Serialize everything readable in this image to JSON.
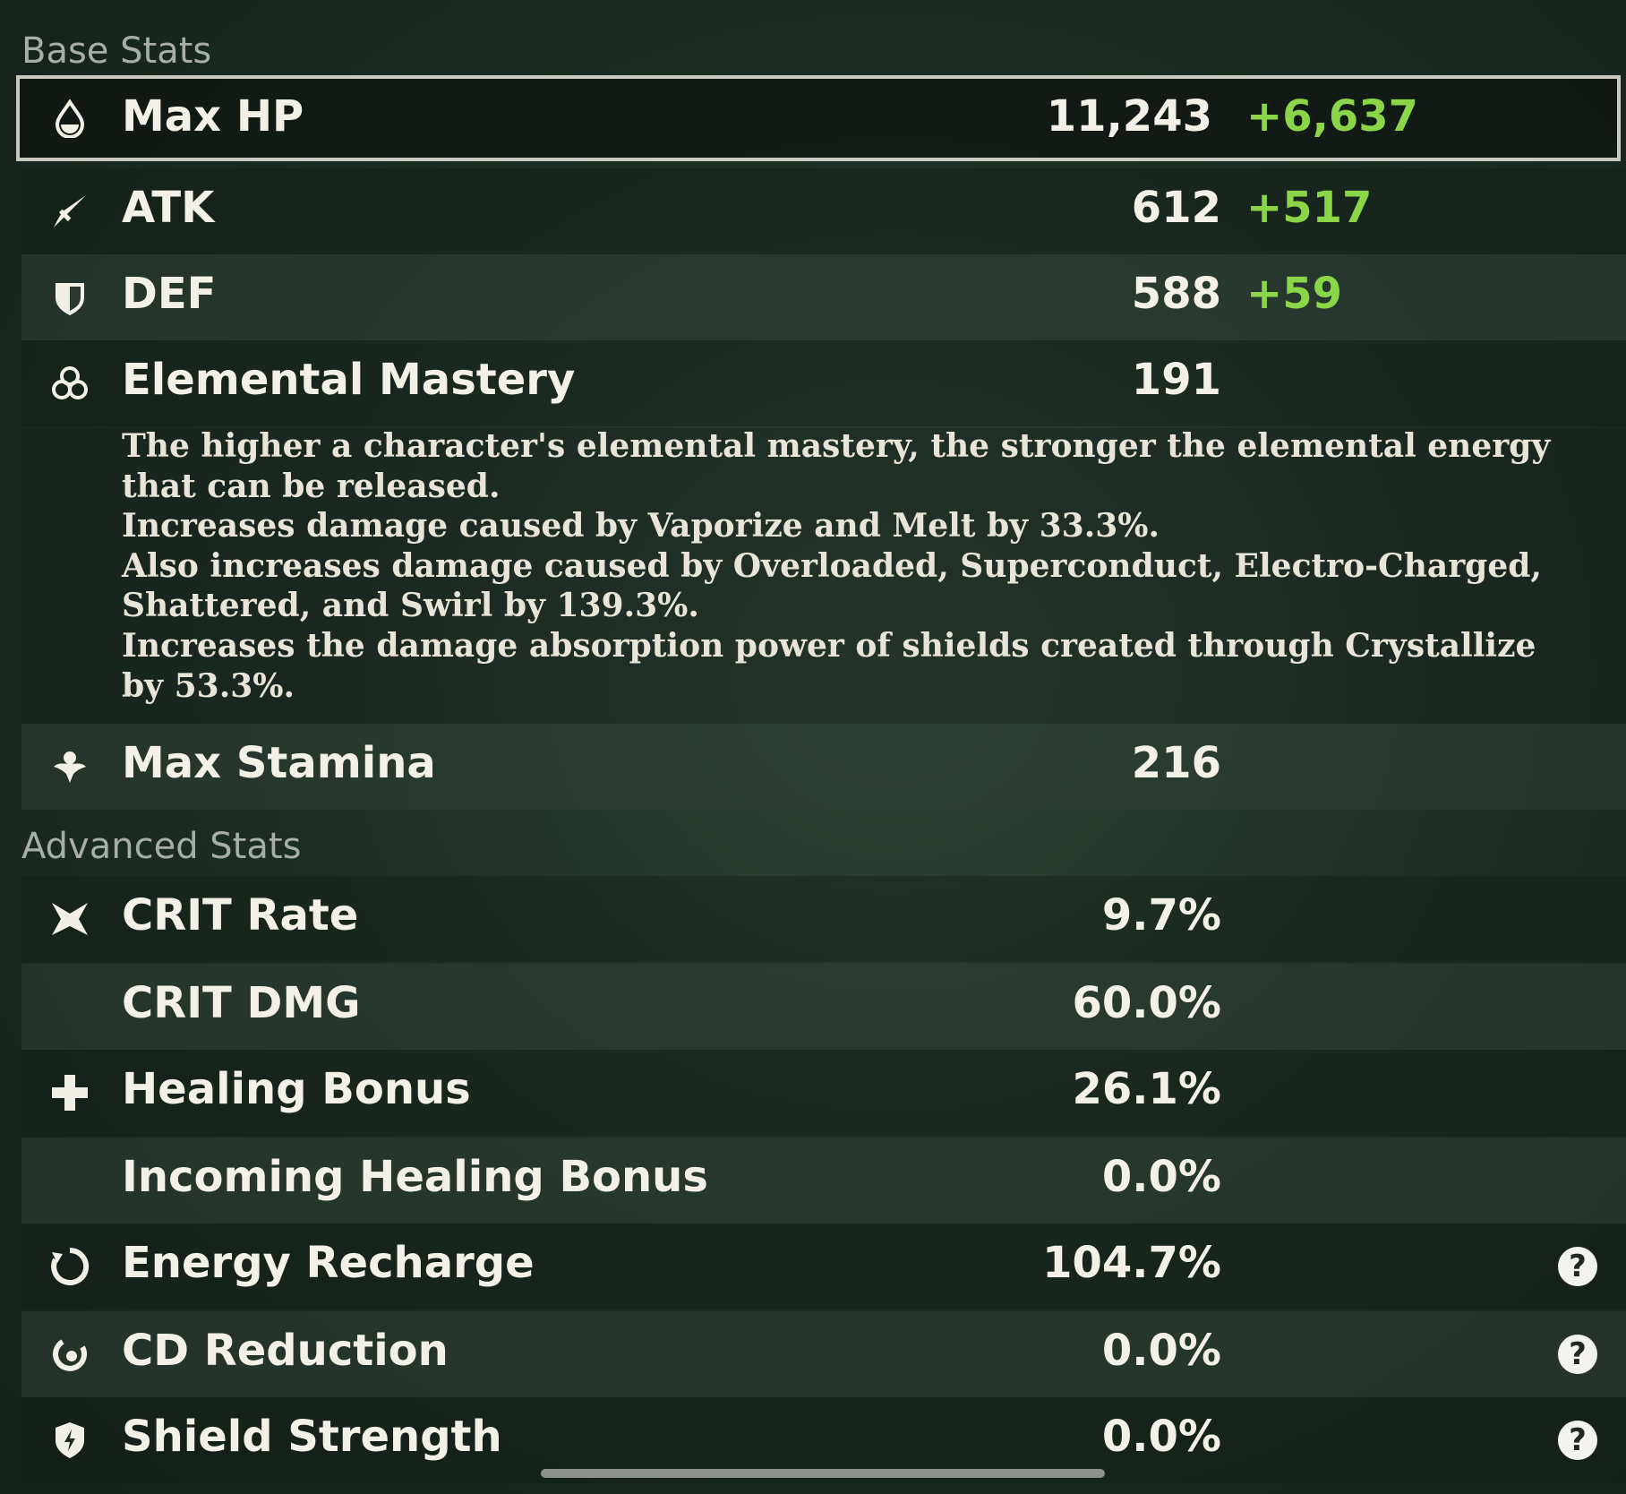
{
  "sections": {
    "base_title": "Base Stats",
    "advanced_title": "Advanced Stats"
  },
  "base_stats": [
    {
      "icon": "hp-drop-icon",
      "label": "Max HP",
      "value": "11,243",
      "bonus": "+6,637",
      "selected": true
    },
    {
      "icon": "sword-icon",
      "label": "ATK",
      "value": "612",
      "bonus": "+517"
    },
    {
      "icon": "shield-icon",
      "label": "DEF",
      "value": "588",
      "bonus": "+59"
    },
    {
      "icon": "elemental-mastery-icon",
      "label": "Elemental Mastery",
      "value": "191"
    },
    {
      "icon": "stamina-icon",
      "label": "Max Stamina",
      "value": "216"
    }
  ],
  "elemental_mastery_description": [
    "The higher a character's elemental mastery, the stronger the elemental energy that can be released.",
    "Increases damage caused by Vaporize and Melt by 33.3%.",
    "Also increases damage caused by Overloaded, Superconduct, Electro-Charged, Shattered, and Swirl by 139.3%.",
    "Increases the damage absorption power of shields created through Crystallize by 53.3%."
  ],
  "advanced_stats": [
    {
      "icon": "crit-rate-icon",
      "label": "CRIT Rate",
      "value": "9.7%"
    },
    {
      "icon": "",
      "label": "CRIT DMG",
      "value": "60.0%"
    },
    {
      "icon": "healing-cross-icon",
      "label": "Healing Bonus",
      "value": "26.1%"
    },
    {
      "icon": "",
      "label": "Incoming Healing Bonus",
      "value": "0.0%"
    },
    {
      "icon": "energy-recharge-icon",
      "label": "Energy Recharge",
      "value": "104.7%",
      "help": "?"
    },
    {
      "icon": "cd-reduction-icon",
      "label": "CD Reduction",
      "value": "0.0%",
      "help": "?"
    },
    {
      "icon": "shield-strength-icon",
      "label": "Shield Strength",
      "value": "0.0%",
      "help": "?"
    }
  ],
  "colors": {
    "bonus_green": "#8bd648",
    "text": "#f3f0e8",
    "section_title": "#a9aea4"
  }
}
